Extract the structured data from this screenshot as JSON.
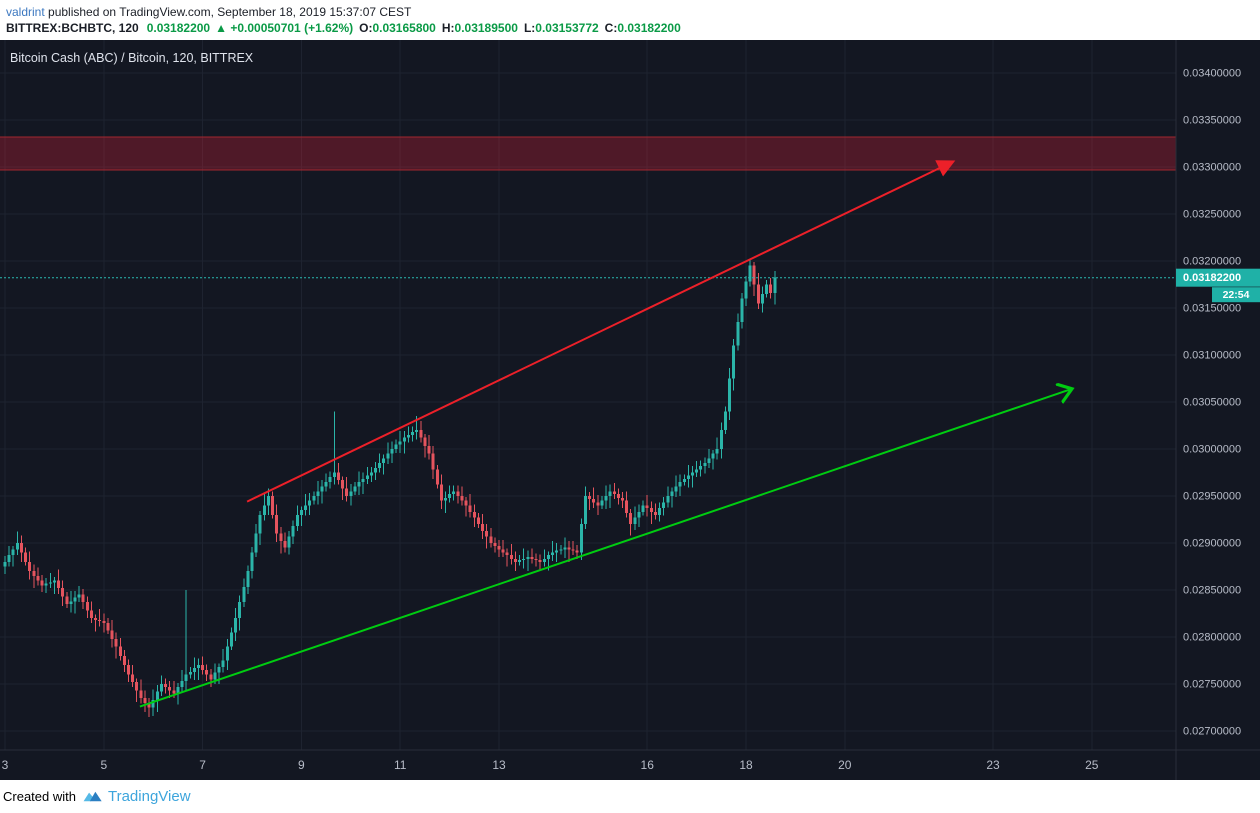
{
  "header": {
    "username": "valdrint",
    "published_text": "published on TradingView.com, September 18, 2019 15:37:07 CEST",
    "symbol": "BITTREX:BCHBTC, 120",
    "last_price": "0.03182200",
    "direction_icon": "▲",
    "change": "+0.00050701",
    "change_pct": "(+1.62%)",
    "ohlc": {
      "o_label": "O:",
      "o_value": "0.03165800",
      "h_label": "H:",
      "h_value": "0.03189500",
      "l_label": "L:",
      "l_value": "0.03153772",
      "c_label": "C:",
      "c_value": "0.03182200"
    }
  },
  "chart": {
    "title": "Bitcoin Cash (ABC) / Bitcoin, 120, BITTREX",
    "price_label": "0.03182200",
    "countdown": "22:54",
    "colors": {
      "background": "#131722",
      "grid": "#1e2330",
      "axis_border": "#2a2e39",
      "axis_text": "#b8bdc9",
      "up": "#2bb5a9",
      "down": "#e5545e",
      "price_line": "#2ab8b0",
      "price_label_bg": "#1fb1a7",
      "band_fill": "rgba(236,32,57,0.28)",
      "band_border": "#a2272f",
      "title_text": "#dfe3ec"
    }
  },
  "footer": {
    "created_with": "Created with",
    "brand": "TradingView"
  },
  "chart_data": {
    "type": "candlestick",
    "symbol": "BITTREX:BCHBTC",
    "exchange": "BITTREX",
    "interval_minutes": 120,
    "title": "Bitcoin Cash (ABC) / Bitcoin, 120, BITTREX",
    "x_axis_unit": "day of September 2019",
    "x_axis_ticks": [
      "3",
      "5",
      "7",
      "9",
      "11",
      "13",
      "16",
      "18",
      "20",
      "23",
      "25"
    ],
    "y_axis_ticks": [
      "0.03400000",
      "0.03350000",
      "0.03300000",
      "0.03250000",
      "0.03200000",
      "0.03150000",
      "0.03100000",
      "0.03050000",
      "0.03000000",
      "0.02950000",
      "0.02900000",
      "0.02850000",
      "0.02800000",
      "0.02750000",
      "0.02700000"
    ],
    "ylim": [
      0.0268,
      0.03435
    ],
    "xlim_days": [
      3,
      26.8
    ],
    "grid": true,
    "legend": "none",
    "last_price": 0.031822,
    "price_unit_divisor": 100000,
    "candles_per_day": 12,
    "start_day": 3,
    "candles_note": "each candle is [open,high,low,close] in units of 1e-5 BTC (divide by price_unit_divisor)",
    "candles": [
      [
        2875,
        2886,
        2867,
        2880
      ],
      [
        2880,
        2897,
        2875,
        2887
      ],
      [
        2887,
        2897,
        2875,
        2893
      ],
      [
        2893,
        2912,
        2887,
        2900
      ],
      [
        2900,
        2908,
        2880,
        2890
      ],
      [
        2890,
        2895,
        2876,
        2880
      ],
      [
        2880,
        2891,
        2861,
        2870
      ],
      [
        2870,
        2877,
        2852,
        2865
      ],
      [
        2865,
        2874,
        2855,
        2860
      ],
      [
        2860,
        2866,
        2848,
        2855
      ],
      [
        2855,
        2863,
        2847,
        2857
      ],
      [
        2857,
        2868,
        2852,
        2858
      ],
      [
        2858,
        2864,
        2846,
        2860
      ],
      [
        2860,
        2872,
        2846,
        2852
      ],
      [
        2852,
        2860,
        2833,
        2843
      ],
      [
        2843,
        2848,
        2831,
        2835
      ],
      [
        2835,
        2849,
        2826,
        2838
      ],
      [
        2838,
        2849,
        2825,
        2842
      ],
      [
        2842,
        2854,
        2837,
        2845
      ],
      [
        2845,
        2851,
        2830,
        2837
      ],
      [
        2837,
        2843,
        2820,
        2828
      ],
      [
        2828,
        2838,
        2815,
        2820
      ],
      [
        2820,
        2824,
        2806,
        2818
      ],
      [
        2818,
        2830,
        2811,
        2817
      ],
      [
        2817,
        2825,
        2805,
        2815
      ],
      [
        2815,
        2820,
        2803,
        2807
      ],
      [
        2807,
        2818,
        2789,
        2798
      ],
      [
        2798,
        2805,
        2777,
        2790
      ],
      [
        2790,
        2799,
        2775,
        2780
      ],
      [
        2780,
        2786,
        2763,
        2770
      ],
      [
        2770,
        2776,
        2752,
        2760
      ],
      [
        2760,
        2770,
        2747,
        2752
      ],
      [
        2752,
        2756,
        2731,
        2743
      ],
      [
        2743,
        2755,
        2729,
        2735
      ],
      [
        2735,
        2743,
        2720,
        2730
      ],
      [
        2730,
        2735,
        2715,
        2725
      ],
      [
        2725,
        2744,
        2716,
        2733
      ],
      [
        2733,
        2749,
        2720,
        2742
      ],
      [
        2742,
        2759,
        2737,
        2750
      ],
      [
        2750,
        2756,
        2740,
        2747
      ],
      [
        2747,
        2753,
        2735,
        2743
      ],
      [
        2743,
        2753,
        2735,
        2740
      ],
      [
        2740,
        2751,
        2728,
        2747
      ],
      [
        2747,
        2765,
        2741,
        2753
      ],
      [
        2753,
        2850,
        2743,
        2760
      ],
      [
        2760,
        2768,
        2756,
        2763
      ],
      [
        2763,
        2778,
        2754,
        2767
      ],
      [
        2767,
        2777,
        2754,
        2770
      ],
      [
        2770,
        2779,
        2760,
        2765
      ],
      [
        2765,
        2771,
        2753,
        2760
      ],
      [
        2760,
        2766,
        2747,
        2755
      ],
      [
        2755,
        2772,
        2750,
        2762
      ],
      [
        2762,
        2772,
        2750,
        2768
      ],
      [
        2768,
        2787,
        2762,
        2775
      ],
      [
        2775,
        2798,
        2765,
        2790
      ],
      [
        2790,
        2810,
        2786,
        2805
      ],
      [
        2805,
        2831,
        2796,
        2820
      ],
      [
        2820,
        2844,
        2807,
        2837
      ],
      [
        2837,
        2862,
        2832,
        2853
      ],
      [
        2853,
        2876,
        2846,
        2870
      ],
      [
        2870,
        2896,
        2862,
        2890
      ],
      [
        2890,
        2920,
        2885,
        2910
      ],
      [
        2910,
        2934,
        2898,
        2930
      ],
      [
        2930,
        2952,
        2924,
        2940
      ],
      [
        2940,
        2958,
        2930,
        2950
      ],
      [
        2950,
        2955,
        2926,
        2930
      ],
      [
        2930,
        2941,
        2901,
        2910
      ],
      [
        2910,
        2917,
        2889,
        2902
      ],
      [
        2902,
        2911,
        2890,
        2895
      ],
      [
        2895,
        2913,
        2888,
        2907
      ],
      [
        2907,
        2924,
        2899,
        2918
      ],
      [
        2918,
        2940,
        2913,
        2930
      ],
      [
        2930,
        2939,
        2918,
        2935
      ],
      [
        2935,
        2952,
        2929,
        2940
      ],
      [
        2940,
        2953,
        2930,
        2945
      ],
      [
        2945,
        2955,
        2941,
        2950
      ],
      [
        2950,
        2966,
        2941,
        2955
      ],
      [
        2955,
        2967,
        2942,
        2960
      ],
      [
        2960,
        2974,
        2955,
        2965
      ],
      [
        2965,
        2976,
        2958,
        2970
      ],
      [
        2970,
        3040,
        2962,
        2975
      ],
      [
        2975,
        2985,
        2962,
        2967
      ],
      [
        2967,
        2971,
        2946,
        2958
      ],
      [
        2958,
        2970,
        2944,
        2950
      ],
      [
        2950,
        2963,
        2940,
        2955
      ],
      [
        2955,
        2965,
        2951,
        2960
      ],
      [
        2960,
        2976,
        2951,
        2965
      ],
      [
        2965,
        2975,
        2952,
        2968
      ],
      [
        2968,
        2981,
        2963,
        2972
      ],
      [
        2972,
        2981,
        2965,
        2975
      ],
      [
        2975,
        2986,
        2967,
        2980
      ],
      [
        2980,
        2995,
        2975,
        2985
      ],
      [
        2985,
        2994,
        2973,
        2990
      ],
      [
        2990,
        3007,
        2984,
        2995
      ],
      [
        2995,
        3008,
        2985,
        3000
      ],
      [
        3000,
        3010,
        2996,
        3005
      ],
      [
        3005,
        3019,
        2996,
        3008
      ],
      [
        3008,
        3019,
        2995,
        3012
      ],
      [
        3012,
        3024,
        3007,
        3015
      ],
      [
        3015,
        3024,
        3008,
        3018
      ],
      [
        3018,
        3035,
        3010,
        3020
      ],
      [
        3020,
        3030,
        3007,
        3012
      ],
      [
        3012,
        3016,
        2991,
        3003
      ],
      [
        3003,
        3015,
        2989,
        2995
      ],
      [
        2995,
        3003,
        2968,
        2978
      ],
      [
        2978,
        2983,
        2958,
        2962
      ],
      [
        2962,
        2973,
        2936,
        2945
      ],
      [
        2945,
        2955,
        2932,
        2948
      ],
      [
        2948,
        2961,
        2943,
        2952
      ],
      [
        2952,
        2961,
        2945,
        2955
      ],
      [
        2955,
        2961,
        2942,
        2950
      ],
      [
        2950,
        2960,
        2940,
        2945
      ],
      [
        2945,
        2949,
        2928,
        2940
      ],
      [
        2940,
        2952,
        2927,
        2933
      ],
      [
        2933,
        2941,
        2917,
        2927
      ],
      [
        2927,
        2932,
        2916,
        2920
      ],
      [
        2920,
        2931,
        2904,
        2913
      ],
      [
        2913,
        2920,
        2894,
        2907
      ],
      [
        2907,
        2916,
        2895,
        2900
      ],
      [
        2900,
        2906,
        2890,
        2897
      ],
      [
        2897,
        2903,
        2885,
        2893
      ],
      [
        2893,
        2903,
        2885,
        2890
      ],
      [
        2890,
        2894,
        2875,
        2887
      ],
      [
        2887,
        2899,
        2877,
        2883
      ],
      [
        2883,
        2891,
        2870,
        2880
      ],
      [
        2880,
        2887,
        2876,
        2882
      ],
      [
        2882,
        2894,
        2873,
        2883
      ],
      [
        2883,
        2892,
        2870,
        2885
      ],
      [
        2885,
        2894,
        2878,
        2883
      ],
      [
        2883,
        2889,
        2875,
        2882
      ],
      [
        2882,
        2888,
        2872,
        2880
      ],
      [
        2880,
        2893,
        2875,
        2883
      ],
      [
        2883,
        2891,
        2871,
        2887
      ],
      [
        2887,
        2902,
        2881,
        2890
      ],
      [
        2890,
        2900,
        2880,
        2892
      ],
      [
        2892,
        2898,
        2888,
        2893
      ],
      [
        2893,
        2906,
        2884,
        2895
      ],
      [
        2895,
        2902,
        2880,
        2893
      ],
      [
        2893,
        2902,
        2887,
        2892
      ],
      [
        2892,
        2898,
        2883,
        2890
      ],
      [
        2890,
        2926,
        2882,
        2920
      ],
      [
        2920,
        2960,
        2915,
        2950
      ],
      [
        2950,
        2954,
        2935,
        2947
      ],
      [
        2947,
        2959,
        2937,
        2943
      ],
      [
        2943,
        2951,
        2930,
        2940
      ],
      [
        2940,
        2950,
        2936,
        2945
      ],
      [
        2945,
        2961,
        2936,
        2950
      ],
      [
        2950,
        2962,
        2937,
        2955
      ],
      [
        2955,
        2964,
        2947,
        2952
      ],
      [
        2952,
        2958,
        2941,
        2948
      ],
      [
        2948,
        2954,
        2937,
        2945
      ],
      [
        2945,
        2955,
        2927,
        2932
      ],
      [
        2932,
        2936,
        2908,
        2920
      ],
      [
        2920,
        2939,
        2914,
        2927
      ],
      [
        2927,
        2941,
        2917,
        2933
      ],
      [
        2933,
        2945,
        2929,
        2940
      ],
      [
        2940,
        2951,
        2928,
        2937
      ],
      [
        2937,
        2944,
        2920,
        2933
      ],
      [
        2933,
        2942,
        2925,
        2930
      ],
      [
        2930,
        2943,
        2923,
        2937
      ],
      [
        2937,
        2949,
        2929,
        2943
      ],
      [
        2943,
        2960,
        2938,
        2950
      ],
      [
        2950,
        2959,
        2938,
        2955
      ],
      [
        2955,
        2972,
        2949,
        2960
      ],
      [
        2960,
        2973,
        2950,
        2965
      ],
      [
        2965,
        2973,
        2961,
        2968
      ],
      [
        2968,
        2983,
        2959,
        2972
      ],
      [
        2972,
        2982,
        2959,
        2975
      ],
      [
        2975,
        2987,
        2970,
        2978
      ],
      [
        2978,
        2988,
        2971,
        2982
      ],
      [
        2982,
        2991,
        2974,
        2985
      ],
      [
        2985,
        3000,
        2980,
        2990
      ],
      [
        2990,
        2999,
        2978,
        2995
      ],
      [
        2995,
        3012,
        2989,
        3000
      ],
      [
        3000,
        3028,
        2990,
        3020
      ],
      [
        3020,
        3045,
        3016,
        3040
      ],
      [
        3040,
        3086,
        3031,
        3075
      ],
      [
        3075,
        3117,
        3062,
        3110
      ],
      [
        3110,
        3144,
        3105,
        3135
      ],
      [
        3135,
        3166,
        3128,
        3160
      ],
      [
        3160,
        3184,
        3152,
        3178
      ],
      [
        3178,
        3202,
        3173,
        3195
      ],
      [
        3195,
        3199,
        3163,
        3175
      ],
      [
        3175,
        3187,
        3149,
        3155
      ],
      [
        3155,
        3173,
        3145,
        3165
      ],
      [
        3165,
        3180,
        3161,
        3175
      ],
      [
        3175,
        3182,
        3160,
        3165.8
      ],
      [
        3165.8,
        3189.5,
        3153.8,
        3182.2
      ]
    ],
    "resistance_band": {
      "top": 0.03332,
      "bottom": 0.03297
    },
    "trendlines": [
      {
        "name": "resistance-trend-arrow",
        "color": "#ec2029",
        "head": "filled",
        "from": {
          "day": 7.9,
          "price": 0.02944
        },
        "to": {
          "day": 22.2,
          "price": 0.03306
        }
      },
      {
        "name": "support-trend-arrow",
        "color": "#00cc11",
        "head": "open",
        "from": {
          "day": 5.73,
          "price": 0.02726
        },
        "to": {
          "day": 24.6,
          "price": 0.03064
        }
      }
    ]
  }
}
